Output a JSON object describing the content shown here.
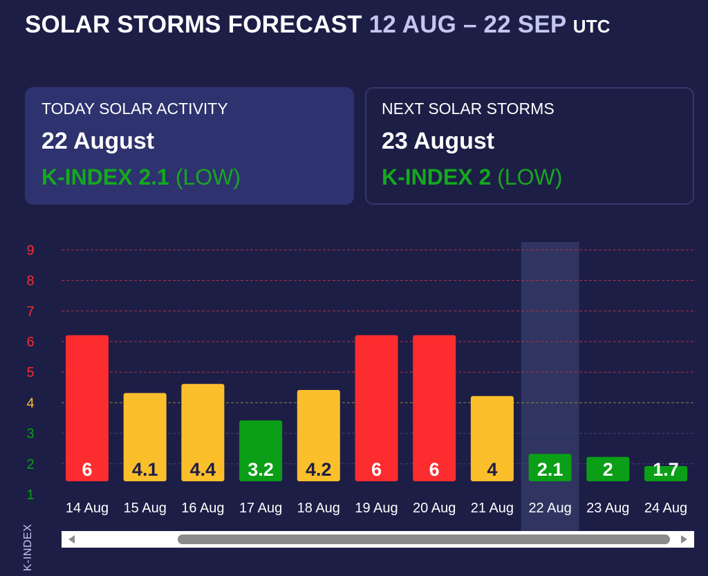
{
  "header": {
    "title": "SOLAR STORMS FORECAST",
    "range": "12 AUG – 22 SEP",
    "timezone": "UTC"
  },
  "today_card": {
    "label": "TODAY SOLAR ACTIVITY",
    "date": "22 August",
    "kindex_text": "K-INDEX 2.1",
    "level_text": "(LOW)"
  },
  "next_card": {
    "label": "NEXT SOLAR STORMS",
    "date": "23 August",
    "kindex_text": "K-INDEX 2",
    "level_text": "(LOW)"
  },
  "colors": {
    "background": "#1d1e46",
    "storm_red": "#fc2c2f",
    "moderate_yellow": "#fcbf2c",
    "low_green": "#0a9f16",
    "highlight": "#2f3560"
  },
  "chart_data": {
    "type": "bar",
    "ylabel": "K-INDEX",
    "xlabel": "",
    "ylim": [
      1,
      9
    ],
    "yticks": [
      "1",
      "2",
      "3",
      "4",
      "5",
      "6",
      "7",
      "8",
      "9"
    ],
    "categories": [
      "14 Aug",
      "15 Aug",
      "16 Aug",
      "17 Aug",
      "18 Aug",
      "19 Aug",
      "20 Aug",
      "21 Aug",
      "22 Aug",
      "23 Aug",
      "24 Aug"
    ],
    "values": [
      6,
      4.1,
      4.4,
      3.2,
      4.2,
      6,
      6,
      4,
      2.1,
      2,
      1.7
    ],
    "labels": [
      "6",
      "4.1",
      "4.4",
      "3.2",
      "4.2",
      "6",
      "6",
      "4",
      "2.1",
      "2",
      "1.7"
    ],
    "highlighted_category": "22 Aug",
    "grid": true,
    "scrollbar": true
  }
}
